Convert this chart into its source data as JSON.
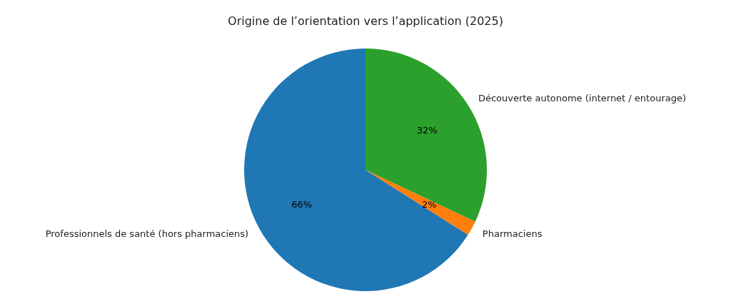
{
  "chart_data": {
    "type": "pie",
    "title": "Origine de l’orientation vers l’application (2025)",
    "categories": [
      "Professionnels de santé (hors pharmaciens)",
      "Pharmaciens",
      "Découverte autonome (internet / entourage)"
    ],
    "values": [
      66,
      2,
      32
    ],
    "value_labels": [
      "66%",
      "2%",
      "32%"
    ],
    "colors": [
      "#1f77b4",
      "#ff7f0e",
      "#2ca02c"
    ],
    "legend": false
  }
}
